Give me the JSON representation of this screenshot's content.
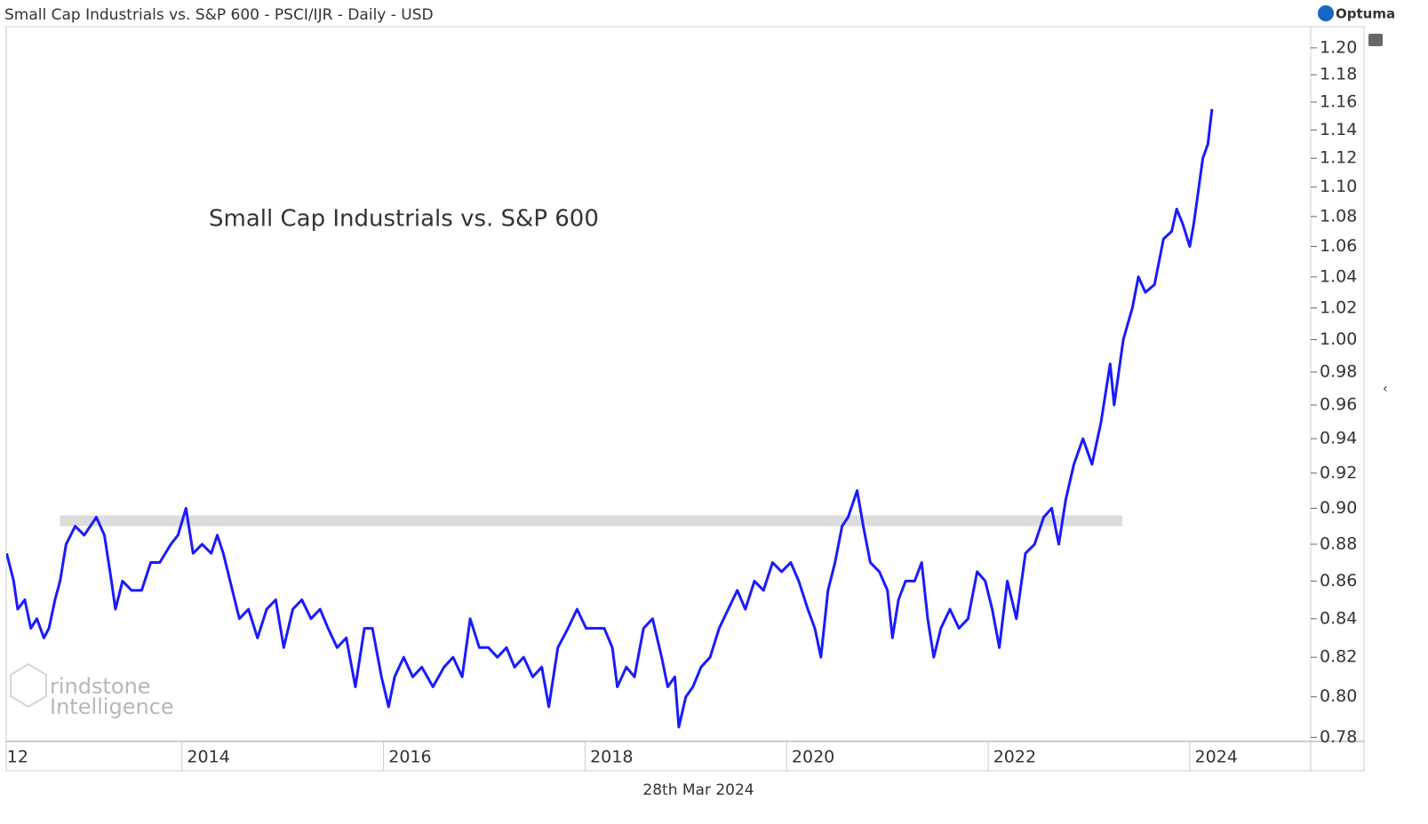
{
  "chart_data": {
    "type": "line",
    "title": "Small Cap Industrials vs. S&P 600 - PSCI/IJR - Daily - USD",
    "annotation": "Small Cap Industrials vs. S&P 600",
    "brand": "Optuma",
    "watermark": [
      "rindstone",
      "Intelligence"
    ],
    "date_label": "28th Mar 2024",
    "log_y": true,
    "color": "#1a1aff",
    "band": {
      "x": [
        2012.79,
        2023.33
      ],
      "y": [
        0.89,
        0.896
      ],
      "color": "#dcdcdc"
    },
    "xlim": [
      2012.256,
      2025.2
    ],
    "xticks": [
      {
        "value": 2012,
        "label": "12"
      },
      2014,
      2016,
      2018,
      2020,
      2022,
      2024
    ],
    "ylim": [
      0.778,
      1.216
    ],
    "yticks": [
      0.78,
      {
        "value": 0.8,
        "label": "0.80"
      },
      0.82,
      0.84,
      0.86,
      0.88,
      {
        "value": 0.9,
        "label": "0.90"
      },
      0.92,
      0.94,
      0.96,
      0.98,
      {
        "value": 1,
        "label": "1.00"
      },
      1.02,
      1.04,
      1.06,
      1.08,
      {
        "value": 1.1,
        "label": "1.10"
      },
      1.12,
      1.14,
      1.16,
      1.18,
      {
        "value": 1.2,
        "label": "1.20"
      }
    ],
    "x": [
      2012.26,
      2012.33,
      2012.37,
      2012.44,
      2012.5,
      2012.56,
      2012.63,
      2012.68,
      2012.74,
      2012.79,
      2012.85,
      2012.94,
      2013.03,
      2013.15,
      2013.23,
      2013.3,
      2013.34,
      2013.41,
      2013.5,
      2013.6,
      2013.69,
      2013.78,
      2013.89,
      2013.96,
      2014.04,
      2014.11,
      2014.2,
      2014.29,
      2014.35,
      2014.41,
      2014.5,
      2014.57,
      2014.66,
      2014.75,
      2014.84,
      2014.93,
      2015.01,
      2015.1,
      2015.19,
      2015.28,
      2015.37,
      2015.45,
      2015.54,
      2015.63,
      2015.72,
      2015.81,
      2015.89,
      2015.98,
      2016.05,
      2016.11,
      2016.2,
      2016.29,
      2016.38,
      2016.49,
      2016.6,
      2016.69,
      2016.78,
      2016.86,
      2016.95,
      2017.04,
      2017.13,
      2017.22,
      2017.3,
      2017.39,
      2017.48,
      2017.57,
      2017.64,
      2017.73,
      2017.83,
      2017.92,
      2018.01,
      2018.1,
      2018.19,
      2018.27,
      2018.32,
      2018.41,
      2018.49,
      2018.58,
      2018.67,
      2018.76,
      2018.82,
      2018.89,
      2018.93,
      2019.0,
      2019.07,
      2019.15,
      2019.24,
      2019.33,
      2019.42,
      2019.51,
      2019.59,
      2019.68,
      2019.77,
      2019.86,
      2019.95,
      2020.04,
      2020.12,
      2020.21,
      2020.28,
      2020.34,
      2020.41,
      2020.48,
      2020.55,
      2020.61,
      2020.7,
      2020.76,
      2020.83,
      2020.92,
      2021.0,
      2021.05,
      2021.11,
      2021.18,
      2021.27,
      2021.34,
      2021.4,
      2021.46,
      2021.53,
      2021.62,
      2021.71,
      2021.8,
      2021.89,
      2021.97,
      2022.04,
      2022.11,
      2022.19,
      2022.28,
      2022.37,
      2022.46,
      2022.55,
      2022.63,
      2022.7,
      2022.77,
      2022.85,
      2022.94,
      2023.03,
      2023.12,
      2023.21,
      2023.25,
      2023.34,
      2023.43,
      2023.49,
      2023.56,
      2023.65,
      2023.74,
      2023.82,
      2023.87,
      2023.93,
      2024.0,
      2024.04,
      2024.09,
      2024.13,
      2024.18,
      2024.22
    ],
    "values": [
      0.875,
      0.86,
      0.845,
      0.85,
      0.835,
      0.84,
      0.83,
      0.835,
      0.85,
      0.86,
      0.88,
      0.89,
      0.885,
      0.895,
      0.885,
      0.86,
      0.845,
      0.86,
      0.855,
      0.855,
      0.87,
      0.87,
      0.88,
      0.885,
      0.9,
      0.875,
      0.88,
      0.875,
      0.885,
      0.875,
      0.855,
      0.84,
      0.845,
      0.83,
      0.845,
      0.85,
      0.825,
      0.845,
      0.85,
      0.84,
      0.845,
      0.835,
      0.825,
      0.83,
      0.805,
      0.835,
      0.835,
      0.81,
      0.795,
      0.81,
      0.82,
      0.81,
      0.815,
      0.805,
      0.815,
      0.82,
      0.81,
      0.84,
      0.825,
      0.825,
      0.82,
      0.825,
      0.815,
      0.82,
      0.81,
      0.815,
      0.795,
      0.825,
      0.835,
      0.845,
      0.835,
      0.835,
      0.835,
      0.825,
      0.805,
      0.815,
      0.81,
      0.835,
      0.84,
      0.82,
      0.805,
      0.81,
      0.785,
      0.8,
      0.805,
      0.815,
      0.82,
      0.835,
      0.845,
      0.855,
      0.845,
      0.86,
      0.855,
      0.87,
      0.865,
      0.87,
      0.86,
      0.845,
      0.835,
      0.82,
      0.855,
      0.87,
      0.89,
      0.895,
      0.91,
      0.89,
      0.87,
      0.865,
      0.855,
      0.83,
      0.85,
      0.86,
      0.86,
      0.87,
      0.84,
      0.82,
      0.835,
      0.845,
      0.835,
      0.84,
      0.865,
      0.86,
      0.845,
      0.825,
      0.86,
      0.84,
      0.875,
      0.88,
      0.895,
      0.9,
      0.88,
      0.905,
      0.925,
      0.94,
      0.925,
      0.95,
      0.985,
      0.96,
      1.0,
      1.02,
      1.04,
      1.03,
      1.035,
      1.065,
      1.07,
      1.085,
      1.075,
      1.06,
      1.075,
      1.1,
      1.12,
      1.13,
      1.155
    ]
  }
}
